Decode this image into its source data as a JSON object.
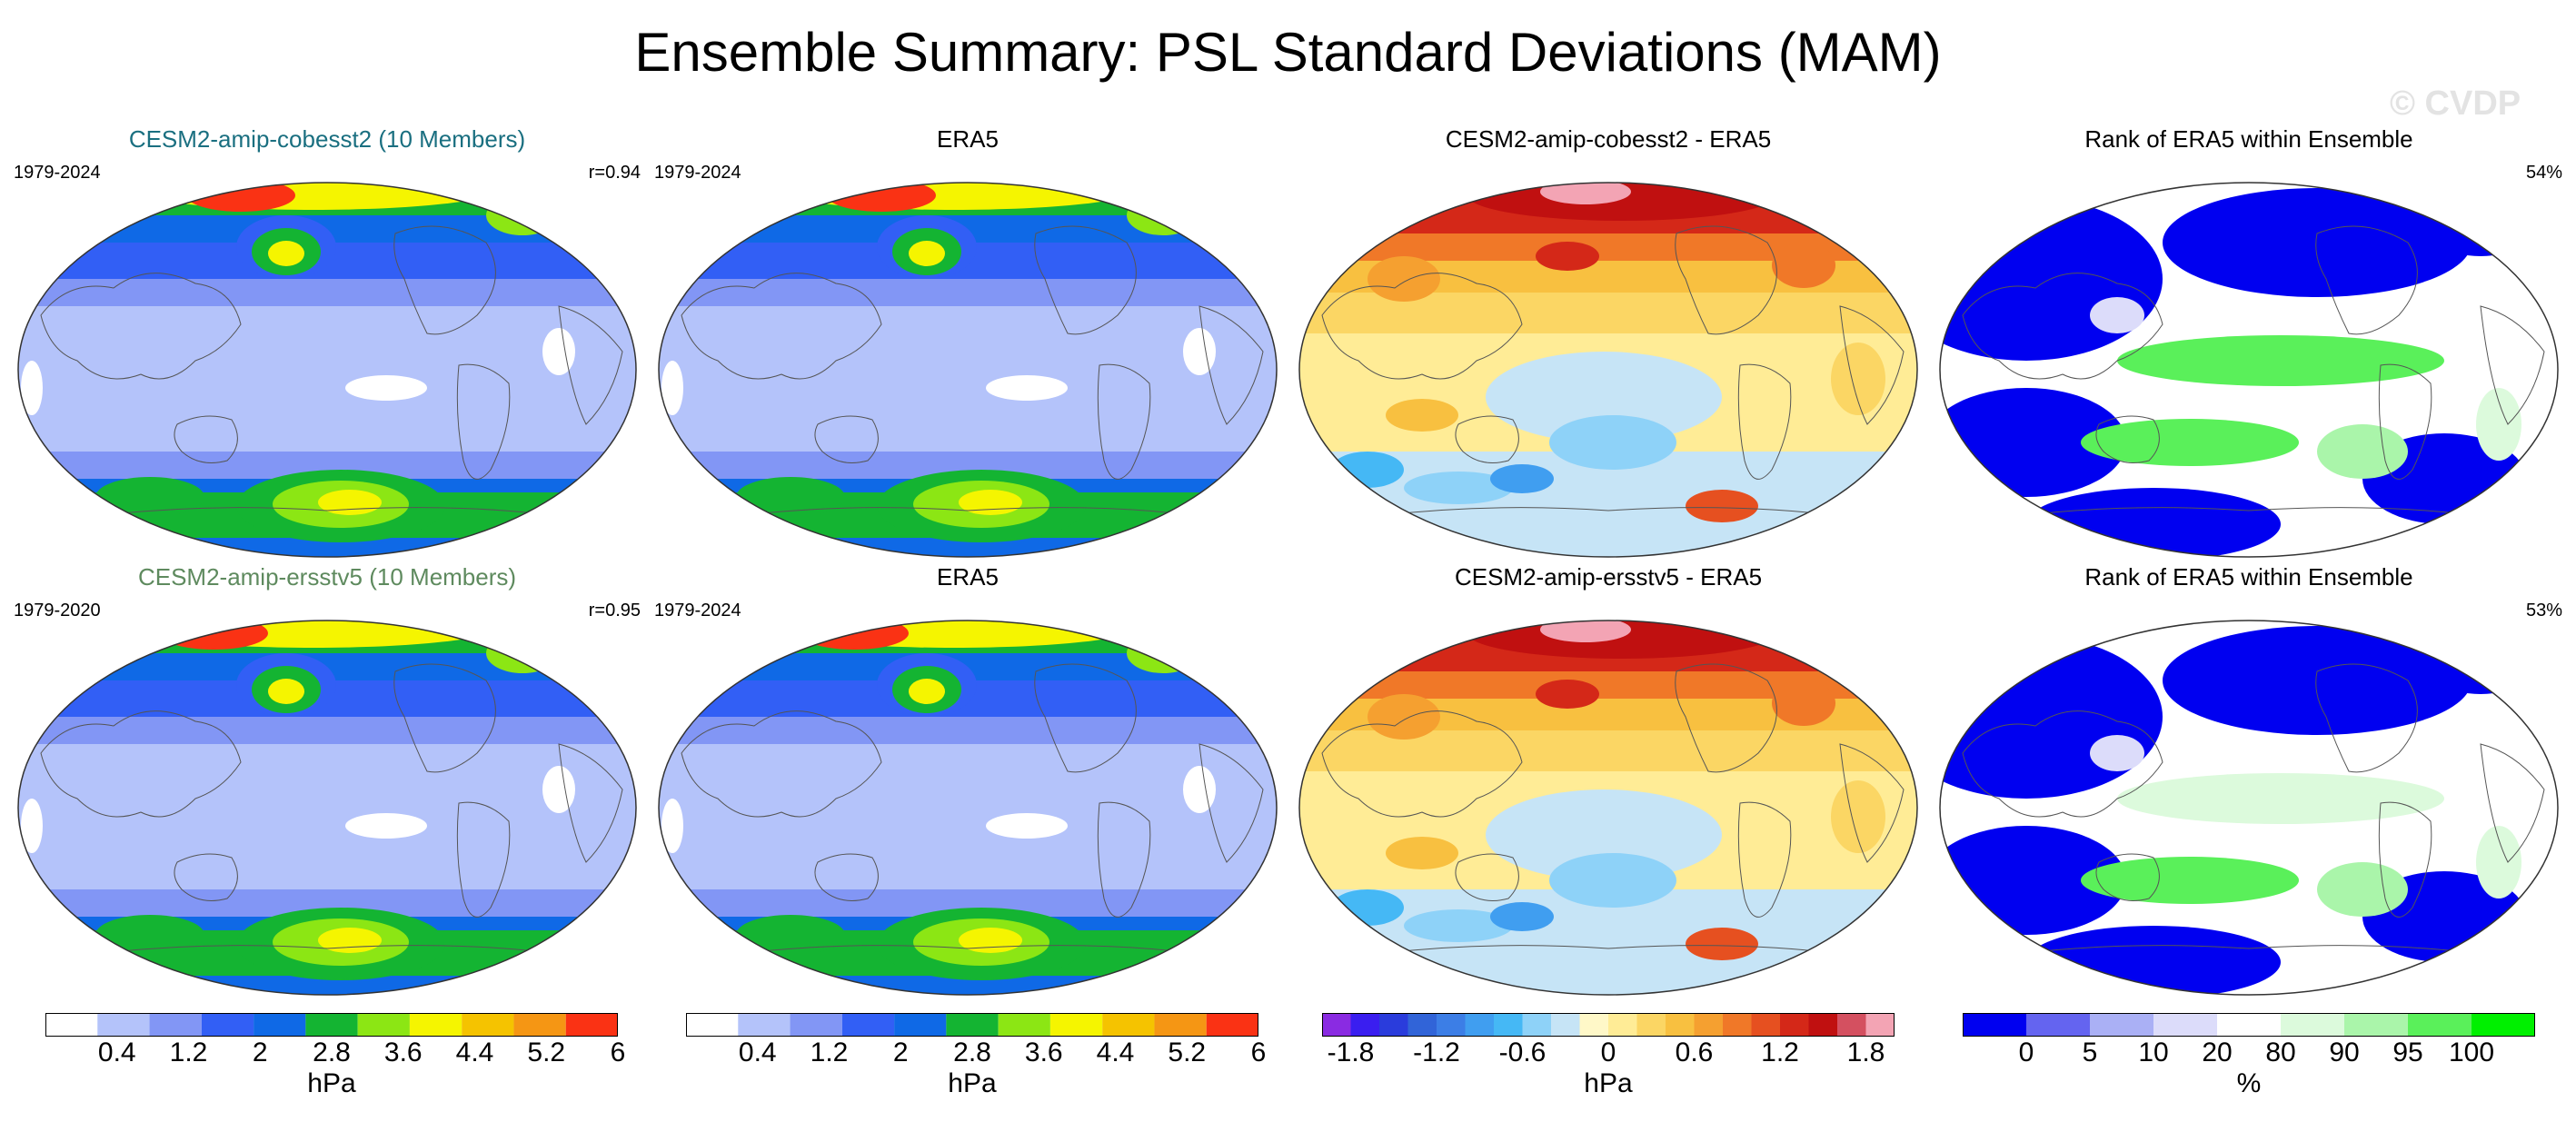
{
  "figure": {
    "title": "Ensemble Summary: PSL Standard Deviations (MAM)",
    "watermark": "© CVDP"
  },
  "panels": [
    {
      "title": "CESM2-amip-cobesst2 (10 Members)",
      "title_color": "#1a6f80",
      "left_note": "1979-2024",
      "right_note": "r=0.94",
      "kind": "std"
    },
    {
      "title": "ERA5",
      "title_color": "#000000",
      "left_note": "1979-2024",
      "right_note": "",
      "kind": "std"
    },
    {
      "title": "CESM2-amip-cobesst2 - ERA5",
      "title_color": "#000000",
      "left_note": "",
      "right_note": "",
      "kind": "diff"
    },
    {
      "title": "Rank of ERA5 within Ensemble",
      "title_color": "#000000",
      "left_note": "",
      "right_note": "54%",
      "kind": "rank"
    },
    {
      "title": "CESM2-amip-ersstv5 (10 Members)",
      "title_color": "#5e8a5e",
      "left_note": "1979-2020",
      "right_note": "r=0.95",
      "kind": "std"
    },
    {
      "title": "ERA5",
      "title_color": "#000000",
      "left_note": "1979-2024",
      "right_note": "",
      "kind": "std"
    },
    {
      "title": "CESM2-amip-ersstv5 - ERA5",
      "title_color": "#000000",
      "left_note": "",
      "right_note": "",
      "kind": "diff"
    },
    {
      "title": "Rank of ERA5 within Ensemble",
      "title_color": "#000000",
      "left_note": "",
      "right_note": "53%",
      "kind": "rank"
    }
  ],
  "colorbars": [
    {
      "name": "std",
      "unit": "hPa",
      "colors": [
        "#ffffff",
        "#b4c3fa",
        "#8296f5",
        "#325ff5",
        "#0f69e6",
        "#14b432",
        "#8ce614",
        "#f5f500",
        "#f5c300",
        "#f59614",
        "#fa3214"
      ],
      "labels": [
        "0.4",
        "1.2",
        "2",
        "2.8",
        "3.6",
        "4.4",
        "5.2",
        "6"
      ],
      "label_slots": [
        1,
        3,
        5,
        7,
        9,
        11,
        13,
        15
      ]
    },
    {
      "name": "std2",
      "unit": "hPa",
      "colors": [
        "#ffffff",
        "#b4c3fa",
        "#8296f5",
        "#325ff5",
        "#0f69e6",
        "#14b432",
        "#8ce614",
        "#f5f500",
        "#f5c300",
        "#f59614",
        "#fa3214"
      ],
      "labels": [
        "0.4",
        "1.2",
        "2",
        "2.8",
        "3.6",
        "4.4",
        "5.2",
        "6"
      ],
      "label_slots": [
        1,
        3,
        5,
        7,
        9,
        11,
        13,
        15
      ]
    },
    {
      "name": "diff",
      "unit": "hPa",
      "colors": [
        "#8a2be2",
        "#3a1ef0",
        "#2a3cdc",
        "#3164d8",
        "#3c7ee6",
        "#409ef0",
        "#45b8f5",
        "#8ed2f8",
        "#c6e4f6",
        "#fff8c8",
        "#ffec96",
        "#fbd664",
        "#f8c040",
        "#f5a030",
        "#f07828",
        "#e65020",
        "#d42818",
        "#c01010",
        "#d45060",
        "#f3a4b4"
      ],
      "labels": [
        "-1.8",
        "-1.2",
        "-0.6",
        "0",
        "0.6",
        "1.2",
        "1.8"
      ],
      "label_slots": [
        1,
        4,
        7,
        10,
        13,
        16,
        19
      ]
    },
    {
      "name": "rank",
      "unit": "%",
      "colors": [
        "#0000f0",
        "#6464f0",
        "#aab0f5",
        "#dcdcfa",
        "#ffffff",
        "#dcfadc",
        "#aaf5aa",
        "#5af05a",
        "#00f000"
      ],
      "labels": [
        "0",
        "5",
        "10",
        "20",
        "80",
        "90",
        "95",
        "100"
      ],
      "label_slots": [
        1,
        2,
        3,
        4,
        5,
        6,
        7,
        8
      ]
    }
  ]
}
